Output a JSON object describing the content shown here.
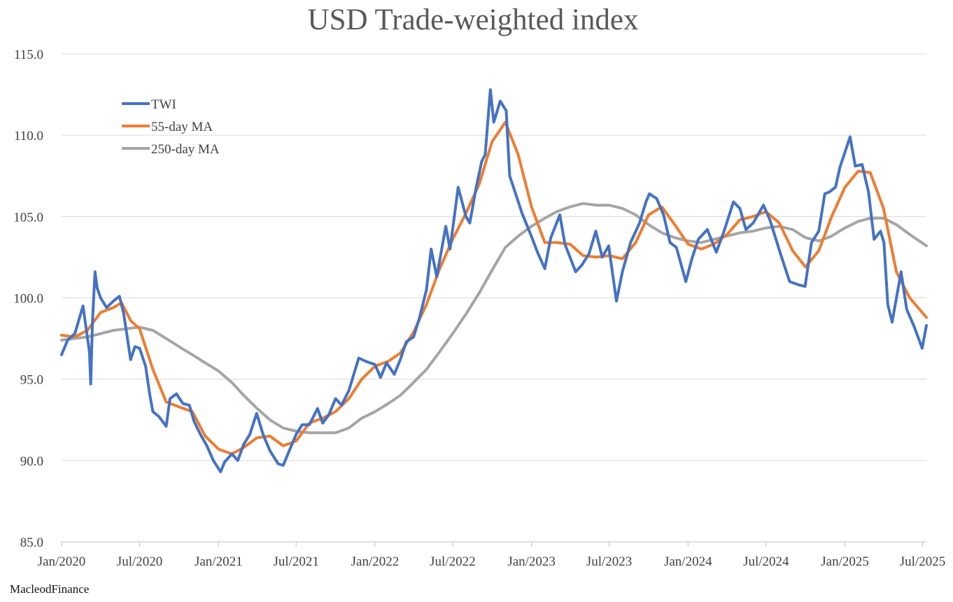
{
  "title": "USD Trade-weighted index",
  "source": "MacleodFinance",
  "chart_data": {
    "type": "line",
    "title": "USD Trade-weighted index",
    "xlabel": "",
    "ylabel": "",
    "ylim": [
      85,
      115
    ],
    "xlim": [
      "2020-01-01",
      "2025-07-10"
    ],
    "grid": true,
    "legend_position": "top-left",
    "y_ticks": [
      85,
      90,
      95,
      100,
      105,
      110,
      115
    ],
    "y_tick_labels": [
      "85.0",
      "90.0",
      "95.0",
      "100.0",
      "105.0",
      "110.0",
      "115.0"
    ],
    "x_ticks": [
      "2020-01-01",
      "2020-07-01",
      "2021-01-01",
      "2021-07-01",
      "2022-01-01",
      "2022-07-01",
      "2023-01-01",
      "2023-07-01",
      "2024-01-01",
      "2024-07-01",
      "2025-01-01",
      "2025-07-01"
    ],
    "x_tick_labels": [
      "Jan/2020",
      "Jul/2020",
      "Jan/2021",
      "Jul/2021",
      "Jan/2022",
      "Jul/2022",
      "Jan/2023",
      "Jul/2023",
      "Jan/2024",
      "Jul/2024",
      "Jan/2025",
      "Jul/2025"
    ],
    "series": [
      {
        "name": "TWI",
        "color": "#4472C4",
        "points": [
          [
            "2020-01-01",
            96.5
          ],
          [
            "2020-01-15",
            97.4
          ],
          [
            "2020-02-01",
            97.8
          ],
          [
            "2020-02-20",
            99.5
          ],
          [
            "2020-03-06",
            96.7
          ],
          [
            "2020-03-09",
            94.7
          ],
          [
            "2020-03-13",
            98.5
          ],
          [
            "2020-03-19",
            101.6
          ],
          [
            "2020-03-24",
            100.6
          ],
          [
            "2020-04-01",
            100.0
          ],
          [
            "2020-04-15",
            99.4
          ],
          [
            "2020-05-01",
            99.8
          ],
          [
            "2020-05-15",
            100.1
          ],
          [
            "2020-05-25",
            99.0
          ],
          [
            "2020-06-01",
            97.8
          ],
          [
            "2020-06-10",
            96.2
          ],
          [
            "2020-06-20",
            97.0
          ],
          [
            "2020-07-01",
            96.9
          ],
          [
            "2020-07-15",
            95.8
          ],
          [
            "2020-07-25",
            94.0
          ],
          [
            "2020-08-01",
            93.0
          ],
          [
            "2020-08-15",
            92.7
          ],
          [
            "2020-09-01",
            92.1
          ],
          [
            "2020-09-10",
            93.8
          ],
          [
            "2020-09-25",
            94.1
          ],
          [
            "2020-10-10",
            93.5
          ],
          [
            "2020-10-25",
            93.4
          ],
          [
            "2020-11-05",
            92.4
          ],
          [
            "2020-11-20",
            91.6
          ],
          [
            "2020-12-05",
            90.9
          ],
          [
            "2020-12-20",
            90.0
          ],
          [
            "2021-01-06",
            89.3
          ],
          [
            "2021-01-15",
            89.9
          ],
          [
            "2021-02-01",
            90.4
          ],
          [
            "2021-02-15",
            90.0
          ],
          [
            "2021-03-01",
            91.0
          ],
          [
            "2021-03-15",
            91.6
          ],
          [
            "2021-03-31",
            92.9
          ],
          [
            "2021-04-15",
            91.6
          ],
          [
            "2021-05-01",
            90.6
          ],
          [
            "2021-05-20",
            89.8
          ],
          [
            "2021-06-01",
            89.7
          ],
          [
            "2021-06-15",
            90.6
          ],
          [
            "2021-07-01",
            91.6
          ],
          [
            "2021-07-15",
            92.2
          ],
          [
            "2021-08-01",
            92.2
          ],
          [
            "2021-08-20",
            93.2
          ],
          [
            "2021-09-01",
            92.3
          ],
          [
            "2021-09-15",
            92.8
          ],
          [
            "2021-10-01",
            93.8
          ],
          [
            "2021-10-15",
            93.4
          ],
          [
            "2021-11-01",
            94.3
          ],
          [
            "2021-11-24",
            96.3
          ],
          [
            "2021-12-10",
            96.1
          ],
          [
            "2022-01-01",
            95.9
          ],
          [
            "2022-01-14",
            95.1
          ],
          [
            "2022-01-28",
            96.0
          ],
          [
            "2022-02-15",
            95.3
          ],
          [
            "2022-03-01",
            96.2
          ],
          [
            "2022-03-15",
            97.3
          ],
          [
            "2022-04-01",
            97.6
          ],
          [
            "2022-04-15",
            98.8
          ],
          [
            "2022-05-01",
            100.5
          ],
          [
            "2022-05-12",
            103.0
          ],
          [
            "2022-05-25",
            101.3
          ],
          [
            "2022-06-15",
            104.4
          ],
          [
            "2022-06-25",
            103.0
          ],
          [
            "2022-07-14",
            106.8
          ],
          [
            "2022-08-01",
            105.0
          ],
          [
            "2022-08-10",
            104.6
          ],
          [
            "2022-08-25",
            106.8
          ],
          [
            "2022-09-07",
            108.4
          ],
          [
            "2022-09-15",
            108.8
          ],
          [
            "2022-09-27",
            112.8
          ],
          [
            "2022-10-05",
            110.8
          ],
          [
            "2022-10-20",
            112.1
          ],
          [
            "2022-11-03",
            111.5
          ],
          [
            "2022-11-11",
            107.5
          ],
          [
            "2022-11-25",
            106.4
          ],
          [
            "2022-12-10",
            105.2
          ],
          [
            "2022-12-30",
            103.9
          ],
          [
            "2023-01-15",
            102.8
          ],
          [
            "2023-02-01",
            101.8
          ],
          [
            "2023-02-15",
            103.7
          ],
          [
            "2023-03-08",
            105.1
          ],
          [
            "2023-03-20",
            103.3
          ],
          [
            "2023-04-14",
            101.6
          ],
          [
            "2023-04-28",
            102.0
          ],
          [
            "2023-05-15",
            102.7
          ],
          [
            "2023-05-31",
            104.1
          ],
          [
            "2023-06-15",
            102.5
          ],
          [
            "2023-06-30",
            103.2
          ],
          [
            "2023-07-18",
            99.8
          ],
          [
            "2023-08-01",
            101.6
          ],
          [
            "2023-08-20",
            103.4
          ],
          [
            "2023-09-10",
            104.6
          ],
          [
            "2023-09-25",
            105.9
          ],
          [
            "2023-10-03",
            106.4
          ],
          [
            "2023-10-20",
            106.1
          ],
          [
            "2023-11-05",
            105.1
          ],
          [
            "2023-11-20",
            103.4
          ],
          [
            "2023-12-05",
            103.1
          ],
          [
            "2023-12-27",
            101.0
          ],
          [
            "2024-01-10",
            102.4
          ],
          [
            "2024-01-25",
            103.6
          ],
          [
            "2024-02-15",
            104.2
          ],
          [
            "2024-03-07",
            102.8
          ],
          [
            "2024-03-25",
            104.1
          ],
          [
            "2024-04-16",
            105.9
          ],
          [
            "2024-05-01",
            105.5
          ],
          [
            "2024-05-15",
            104.2
          ],
          [
            "2024-06-01",
            104.6
          ],
          [
            "2024-06-25",
            105.7
          ],
          [
            "2024-07-10",
            104.8
          ],
          [
            "2024-08-05",
            102.6
          ],
          [
            "2024-08-25",
            101.0
          ],
          [
            "2024-09-15",
            100.8
          ],
          [
            "2024-09-30",
            100.7
          ],
          [
            "2024-10-15",
            103.4
          ],
          [
            "2024-11-01",
            104.1
          ],
          [
            "2024-11-15",
            106.4
          ],
          [
            "2024-11-25",
            106.5
          ],
          [
            "2024-12-10",
            106.8
          ],
          [
            "2024-12-20",
            108.0
          ],
          [
            "2025-01-13",
            109.9
          ],
          [
            "2025-01-25",
            108.1
          ],
          [
            "2025-02-10",
            108.2
          ],
          [
            "2025-02-25",
            106.5
          ],
          [
            "2025-03-10",
            103.6
          ],
          [
            "2025-03-25",
            104.1
          ],
          [
            "2025-04-02",
            103.4
          ],
          [
            "2025-04-11",
            99.6
          ],
          [
            "2025-04-21",
            98.5
          ],
          [
            "2025-05-12",
            101.6
          ],
          [
            "2025-05-25",
            99.3
          ],
          [
            "2025-06-12",
            98.2
          ],
          [
            "2025-06-30",
            96.9
          ],
          [
            "2025-07-10",
            98.3
          ]
        ]
      },
      {
        "name": "55-day MA",
        "color": "#ED7D31",
        "points": [
          [
            "2020-01-01",
            97.7
          ],
          [
            "2020-02-01",
            97.6
          ],
          [
            "2020-03-01",
            98.0
          ],
          [
            "2020-04-01",
            99.1
          ],
          [
            "2020-05-01",
            99.4
          ],
          [
            "2020-05-20",
            99.7
          ],
          [
            "2020-06-10",
            98.6
          ],
          [
            "2020-07-01",
            98.1
          ],
          [
            "2020-08-01",
            95.6
          ],
          [
            "2020-09-01",
            93.6
          ],
          [
            "2020-10-01",
            93.3
          ],
          [
            "2020-11-01",
            93.0
          ],
          [
            "2020-12-01",
            91.5
          ],
          [
            "2021-01-01",
            90.7
          ],
          [
            "2021-02-01",
            90.4
          ],
          [
            "2021-03-01",
            90.8
          ],
          [
            "2021-04-01",
            91.4
          ],
          [
            "2021-05-01",
            91.5
          ],
          [
            "2021-06-01",
            90.9
          ],
          [
            "2021-07-01",
            91.2
          ],
          [
            "2021-08-01",
            92.3
          ],
          [
            "2021-09-01",
            92.6
          ],
          [
            "2021-10-01",
            93.0
          ],
          [
            "2021-11-01",
            93.8
          ],
          [
            "2021-12-01",
            95.0
          ],
          [
            "2022-01-01",
            95.8
          ],
          [
            "2022-02-01",
            96.1
          ],
          [
            "2022-03-01",
            96.6
          ],
          [
            "2022-04-01",
            97.9
          ],
          [
            "2022-05-01",
            99.6
          ],
          [
            "2022-06-01",
            101.8
          ],
          [
            "2022-07-01",
            103.6
          ],
          [
            "2022-08-01",
            105.2
          ],
          [
            "2022-09-01",
            107.0
          ],
          [
            "2022-10-01",
            109.6
          ],
          [
            "2022-11-01",
            110.8
          ],
          [
            "2022-12-01",
            108.8
          ],
          [
            "2023-01-01",
            105.6
          ],
          [
            "2023-02-01",
            103.4
          ],
          [
            "2023-03-01",
            103.4
          ],
          [
            "2023-04-01",
            103.3
          ],
          [
            "2023-05-01",
            102.6
          ],
          [
            "2023-06-01",
            102.5
          ],
          [
            "2023-07-01",
            102.6
          ],
          [
            "2023-08-01",
            102.4
          ],
          [
            "2023-09-01",
            103.4
          ],
          [
            "2023-10-01",
            105.1
          ],
          [
            "2023-11-01",
            105.6
          ],
          [
            "2023-12-01",
            104.5
          ],
          [
            "2024-01-01",
            103.3
          ],
          [
            "2024-02-01",
            103.0
          ],
          [
            "2024-03-01",
            103.3
          ],
          [
            "2024-04-01",
            103.9
          ],
          [
            "2024-05-01",
            104.8
          ],
          [
            "2024-06-01",
            105.0
          ],
          [
            "2024-07-01",
            105.3
          ],
          [
            "2024-08-01",
            104.6
          ],
          [
            "2024-09-01",
            102.9
          ],
          [
            "2024-10-01",
            101.9
          ],
          [
            "2024-11-01",
            102.9
          ],
          [
            "2024-12-01",
            105.0
          ],
          [
            "2025-01-01",
            106.8
          ],
          [
            "2025-02-01",
            107.8
          ],
          [
            "2025-03-01",
            107.7
          ],
          [
            "2025-04-01",
            105.5
          ],
          [
            "2025-05-01",
            101.6
          ],
          [
            "2025-06-01",
            100.0
          ],
          [
            "2025-07-10",
            98.8
          ]
        ]
      },
      {
        "name": "250-day MA",
        "color": "#A5A5A5",
        "points": [
          [
            "2020-01-01",
            97.4
          ],
          [
            "2020-03-01",
            97.6
          ],
          [
            "2020-05-01",
            98.0
          ],
          [
            "2020-07-01",
            98.2
          ],
          [
            "2020-08-01",
            98.0
          ],
          [
            "2020-09-01",
            97.5
          ],
          [
            "2020-10-01",
            97.0
          ],
          [
            "2020-11-01",
            96.5
          ],
          [
            "2020-12-01",
            96.0
          ],
          [
            "2021-01-01",
            95.5
          ],
          [
            "2021-02-01",
            94.8
          ],
          [
            "2021-03-01",
            94.0
          ],
          [
            "2021-04-01",
            93.2
          ],
          [
            "2021-05-01",
            92.5
          ],
          [
            "2021-06-01",
            92.0
          ],
          [
            "2021-07-01",
            91.8
          ],
          [
            "2021-08-01",
            91.7
          ],
          [
            "2021-09-01",
            91.7
          ],
          [
            "2021-10-01",
            91.7
          ],
          [
            "2021-11-01",
            92.0
          ],
          [
            "2021-12-01",
            92.6
          ],
          [
            "2022-01-01",
            93.0
          ],
          [
            "2022-02-01",
            93.5
          ],
          [
            "2022-03-01",
            94.0
          ],
          [
            "2022-04-01",
            94.8
          ],
          [
            "2022-05-01",
            95.6
          ],
          [
            "2022-06-01",
            96.7
          ],
          [
            "2022-07-01",
            97.8
          ],
          [
            "2022-08-01",
            99.0
          ],
          [
            "2022-09-01",
            100.3
          ],
          [
            "2022-10-01",
            101.7
          ],
          [
            "2022-11-01",
            103.1
          ],
          [
            "2022-12-01",
            103.8
          ],
          [
            "2023-01-01",
            104.4
          ],
          [
            "2023-02-01",
            104.9
          ],
          [
            "2023-03-01",
            105.3
          ],
          [
            "2023-04-01",
            105.6
          ],
          [
            "2023-05-01",
            105.8
          ],
          [
            "2023-06-01",
            105.7
          ],
          [
            "2023-07-01",
            105.7
          ],
          [
            "2023-08-01",
            105.5
          ],
          [
            "2023-09-01",
            105.1
          ],
          [
            "2023-10-01",
            104.5
          ],
          [
            "2023-11-01",
            104.0
          ],
          [
            "2023-12-01",
            103.7
          ],
          [
            "2024-01-01",
            103.5
          ],
          [
            "2024-02-01",
            103.4
          ],
          [
            "2024-03-01",
            103.6
          ],
          [
            "2024-04-01",
            103.8
          ],
          [
            "2024-05-01",
            104.0
          ],
          [
            "2024-06-01",
            104.1
          ],
          [
            "2024-07-01",
            104.3
          ],
          [
            "2024-08-01",
            104.4
          ],
          [
            "2024-09-01",
            104.2
          ],
          [
            "2024-10-01",
            103.7
          ],
          [
            "2024-11-01",
            103.5
          ],
          [
            "2024-12-01",
            103.8
          ],
          [
            "2025-01-01",
            104.3
          ],
          [
            "2025-02-01",
            104.7
          ],
          [
            "2025-03-01",
            104.9
          ],
          [
            "2025-04-01",
            104.9
          ],
          [
            "2025-05-01",
            104.5
          ],
          [
            "2025-06-01",
            103.9
          ],
          [
            "2025-07-10",
            103.2
          ]
        ]
      }
    ]
  }
}
